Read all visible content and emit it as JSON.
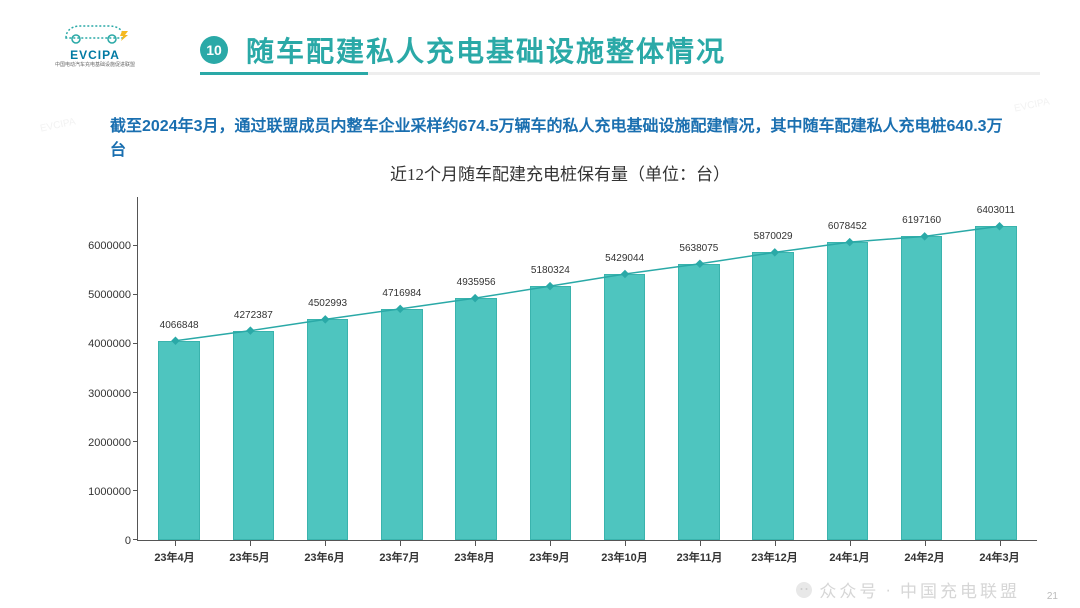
{
  "logo": {
    "brand": "EVCIPA",
    "subtitle": "中国电动汽车充电基础设施促进联盟"
  },
  "header": {
    "badge_number": "10",
    "title": "随车配建私人充电基础设施整体情况"
  },
  "summary": "截至2024年3月，通过联盟成员内整车企业采样约674.5万辆车的私人充电基础设施配建情况，其中随车配建私人充电桩640.3万台",
  "chart": {
    "type": "bar+line",
    "title": "近12个月随车配建充电桩保有量（单位：台）",
    "categories": [
      "23年4月",
      "23年5月",
      "23年6月",
      "23年7月",
      "23年8月",
      "23年9月",
      "23年10月",
      "23年11月",
      "23年12月",
      "24年1月",
      "24年2月",
      "24年3月"
    ],
    "values": [
      4066848,
      4272387,
      4502993,
      4716984,
      4935956,
      5180324,
      5429044,
      5638075,
      5870029,
      6078452,
      6197160,
      6403011
    ],
    "value_labels": [
      "4066848",
      "4272387",
      "4502993",
      "4716984",
      "4935956",
      "5180324",
      "5429044",
      "5638075",
      "5870029",
      "6078452",
      "6197160",
      "6403011"
    ],
    "ylim": [
      0,
      7000000
    ],
    "yticks": [
      0,
      1000000,
      2000000,
      3000000,
      4000000,
      5000000,
      6000000
    ],
    "ytick_labels": [
      "0",
      "1000000",
      "2000000",
      "3000000",
      "4000000",
      "5000000",
      "6000000"
    ],
    "bar_color": "#4ec5bf",
    "bar_border_color": "#3ab3ad",
    "line_color": "#2aa9a7",
    "marker_color": "#2aa9a7",
    "marker_shape": "diamond",
    "marker_size": 6,
    "line_width": 1.5,
    "bar_width_ratio": 0.56,
    "label_fontsize": 10,
    "axis_fontsize": 11,
    "title_fontsize": 17,
    "background_color": "#ffffff",
    "axis_color": "#555555"
  },
  "footer": {
    "watermark_source": "众众号",
    "watermark_org": "中国充电联盟",
    "page_number": "21"
  }
}
